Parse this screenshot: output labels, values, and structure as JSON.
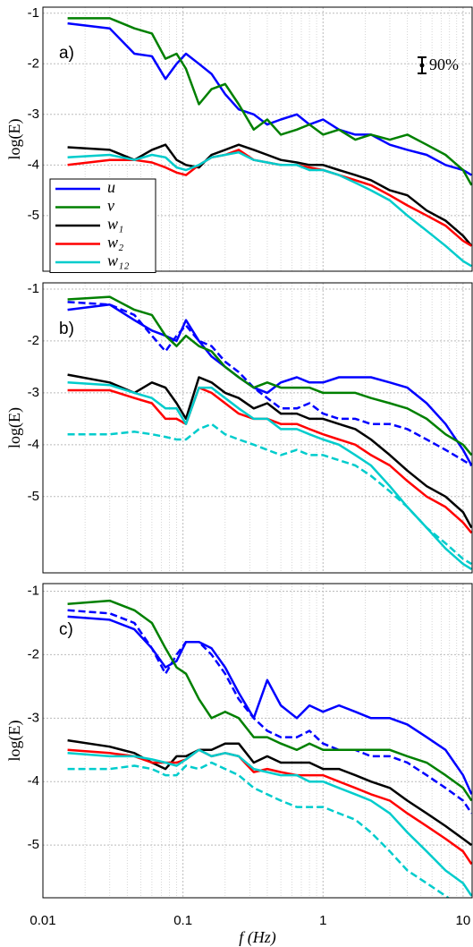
{
  "chart_data": [
    {
      "type": "line",
      "annotation": "a)",
      "ylabel": "log(E)",
      "errorbar_label": "90%",
      "legend": "left",
      "grid": true,
      "log_x": true,
      "xlim": [
        0.01,
        11.6
      ],
      "ylim": [
        -6.1,
        -0.88
      ],
      "xticks": [
        0.01,
        0.1,
        1,
        10
      ],
      "yticks": [
        -5,
        -4,
        -3,
        -2,
        -1
      ],
      "xminorticks": [
        0.02,
        0.03,
        0.04,
        0.05,
        0.06,
        0.07,
        0.08,
        0.09,
        0.2,
        0.3,
        0.4,
        0.5,
        0.6,
        0.7,
        0.8,
        0.9,
        2,
        3,
        4,
        5,
        6,
        7,
        8,
        9
      ],
      "x": [
        0.015,
        0.03,
        0.045,
        0.06,
        0.075,
        0.09,
        0.105,
        0.13,
        0.16,
        0.2,
        0.25,
        0.32,
        0.4,
        0.5,
        0.65,
        0.8,
        1,
        1.3,
        1.7,
        2.2,
        3,
        4,
        5.5,
        7.5,
        10,
        11.5
      ],
      "series": [
        {
          "name": "u",
          "color": "#0000ff",
          "values": [
            -1.2,
            -1.3,
            -1.8,
            -1.85,
            -2.3,
            -2.0,
            -1.8,
            -2.0,
            -2.2,
            -2.6,
            -2.9,
            -3.0,
            -3.2,
            -3.1,
            -3.0,
            -3.2,
            -3.1,
            -3.3,
            -3.4,
            -3.4,
            -3.6,
            -3.7,
            -3.8,
            -4.0,
            -4.1,
            -4.2
          ]
        },
        {
          "name": "v",
          "color": "#008000",
          "values": [
            -1.1,
            -1.1,
            -1.3,
            -1.4,
            -1.9,
            -1.8,
            -2.1,
            -2.8,
            -2.5,
            -2.4,
            -2.8,
            -3.3,
            -3.1,
            -3.4,
            -3.3,
            -3.2,
            -3.4,
            -3.3,
            -3.5,
            -3.4,
            -3.5,
            -3.4,
            -3.6,
            -3.8,
            -4.1,
            -4.4
          ]
        },
        {
          "name": "w₁",
          "color": "#000000",
          "values": [
            -3.65,
            -3.7,
            -3.9,
            -3.7,
            -3.6,
            -3.9,
            -4.0,
            -4.05,
            -3.8,
            -3.7,
            -3.6,
            -3.7,
            -3.8,
            -3.9,
            -3.95,
            -4.0,
            -4.0,
            -4.1,
            -4.2,
            -4.3,
            -4.5,
            -4.6,
            -4.9,
            -5.1,
            -5.4,
            -5.6
          ]
        },
        {
          "name": "w₂",
          "color": "#ff0000",
          "values": [
            -4.0,
            -3.9,
            -3.9,
            -3.95,
            -4.05,
            -4.15,
            -4.2,
            -4.0,
            -3.85,
            -3.8,
            -3.7,
            -3.9,
            -3.95,
            -4.0,
            -4.0,
            -4.05,
            -4.1,
            -4.2,
            -4.3,
            -4.4,
            -4.6,
            -4.8,
            -5.0,
            -5.2,
            -5.5,
            -5.6
          ]
        },
        {
          "name": "w₁₂",
          "color": "#00cccc",
          "values": [
            -3.85,
            -3.8,
            -3.9,
            -3.8,
            -3.85,
            -4.05,
            -4.1,
            -4.0,
            -3.85,
            -3.8,
            -3.75,
            -3.9,
            -3.95,
            -4.0,
            -4.0,
            -4.1,
            -4.1,
            -4.2,
            -4.35,
            -4.5,
            -4.7,
            -5.0,
            -5.3,
            -5.6,
            -5.9,
            -6.0
          ]
        }
      ]
    },
    {
      "type": "line",
      "annotation": "b)",
      "ylabel": "log(E)",
      "grid": true,
      "log_x": true,
      "xlim": [
        0.01,
        11.6
      ],
      "ylim": [
        -6.47,
        -0.88
      ],
      "xticks": [
        0.01,
        0.1,
        1,
        10
      ],
      "yticks": [
        -5,
        -4,
        -3,
        -2,
        -1
      ],
      "xminorticks": [
        0.02,
        0.03,
        0.04,
        0.05,
        0.06,
        0.07,
        0.08,
        0.09,
        0.2,
        0.3,
        0.4,
        0.5,
        0.6,
        0.7,
        0.8,
        0.9,
        2,
        3,
        4,
        5,
        6,
        7,
        8,
        9
      ],
      "x": [
        0.015,
        0.03,
        0.045,
        0.06,
        0.075,
        0.09,
        0.105,
        0.13,
        0.16,
        0.2,
        0.25,
        0.32,
        0.4,
        0.5,
        0.65,
        0.8,
        1,
        1.3,
        1.7,
        2.2,
        3,
        4,
        5.5,
        7.5,
        10,
        11.5
      ],
      "series": [
        {
          "color": "#0000ff",
          "dash": true,
          "values": [
            -1.25,
            -1.3,
            -1.5,
            -1.9,
            -2.2,
            -1.9,
            -1.7,
            -2.0,
            -2.1,
            -2.4,
            -2.6,
            -2.9,
            -3.1,
            -3.3,
            -3.3,
            -3.2,
            -3.4,
            -3.5,
            -3.5,
            -3.6,
            -3.6,
            -3.7,
            -3.9,
            -4.1,
            -4.3,
            -4.4
          ]
        },
        {
          "color": "#00cccc",
          "dash": true,
          "values": [
            -3.8,
            -3.8,
            -3.75,
            -3.8,
            -3.85,
            -3.9,
            -3.9,
            -3.7,
            -3.6,
            -3.8,
            -3.9,
            -4.0,
            -4.1,
            -4.2,
            -4.1,
            -4.2,
            -4.2,
            -4.3,
            -4.4,
            -4.6,
            -4.9,
            -5.2,
            -5.6,
            -5.9,
            -6.2,
            -6.3
          ]
        },
        {
          "color": "#0000ff",
          "values": [
            -1.4,
            -1.3,
            -1.6,
            -1.8,
            -1.9,
            -2.0,
            -1.6,
            -2.0,
            -2.3,
            -2.5,
            -2.7,
            -2.9,
            -3.0,
            -2.8,
            -2.7,
            -2.8,
            -2.8,
            -2.7,
            -2.7,
            -2.7,
            -2.8,
            -2.9,
            -3.2,
            -3.6,
            -4.1,
            -4.4
          ]
        },
        {
          "color": "#008000",
          "values": [
            -1.2,
            -1.15,
            -1.4,
            -1.5,
            -1.9,
            -2.1,
            -1.9,
            -2.1,
            -2.2,
            -2.5,
            -2.7,
            -2.9,
            -2.8,
            -2.9,
            -2.9,
            -2.9,
            -3.0,
            -3.0,
            -3.0,
            -3.1,
            -3.2,
            -3.3,
            -3.5,
            -3.8,
            -4.0,
            -4.2
          ]
        },
        {
          "color": "#000000",
          "values": [
            -2.65,
            -2.8,
            -3.0,
            -2.8,
            -2.9,
            -3.2,
            -3.5,
            -2.7,
            -2.8,
            -3.0,
            -3.1,
            -3.3,
            -3.2,
            -3.4,
            -3.4,
            -3.5,
            -3.5,
            -3.6,
            -3.7,
            -3.9,
            -4.2,
            -4.5,
            -4.8,
            -5.0,
            -5.3,
            -5.6
          ]
        },
        {
          "color": "#ff0000",
          "values": [
            -2.95,
            -2.95,
            -3.1,
            -3.2,
            -3.5,
            -3.5,
            -3.6,
            -2.9,
            -3.0,
            -3.2,
            -3.4,
            -3.5,
            -3.5,
            -3.6,
            -3.6,
            -3.7,
            -3.8,
            -3.9,
            -4.0,
            -4.2,
            -4.4,
            -4.7,
            -5.0,
            -5.2,
            -5.5,
            -5.7
          ]
        },
        {
          "color": "#00cccc",
          "values": [
            -2.8,
            -2.85,
            -3.0,
            -3.1,
            -3.3,
            -3.3,
            -3.6,
            -2.9,
            -2.9,
            -3.1,
            -3.3,
            -3.5,
            -3.5,
            -3.7,
            -3.7,
            -3.8,
            -3.9,
            -4.0,
            -4.2,
            -4.4,
            -4.8,
            -5.2,
            -5.6,
            -6.0,
            -6.3,
            -6.4
          ]
        }
      ]
    },
    {
      "type": "line",
      "annotation": "c)",
      "ylabel": "log(E)",
      "xlabel": "f (Hz)",
      "show_xtick_labels": true,
      "grid": true,
      "log_x": true,
      "xlim": [
        0.01,
        11.6
      ],
      "ylim": [
        -5.83,
        -0.88
      ],
      "xticks": [
        0.01,
        0.1,
        1,
        10
      ],
      "yticks": [
        -5,
        -4,
        -3,
        -2,
        -1
      ],
      "xminorticks": [
        0.02,
        0.03,
        0.04,
        0.05,
        0.06,
        0.07,
        0.08,
        0.09,
        0.2,
        0.3,
        0.4,
        0.5,
        0.6,
        0.7,
        0.8,
        0.9,
        2,
        3,
        4,
        5,
        6,
        7,
        8,
        9
      ],
      "x": [
        0.015,
        0.03,
        0.045,
        0.06,
        0.075,
        0.09,
        0.105,
        0.13,
        0.16,
        0.2,
        0.25,
        0.32,
        0.4,
        0.5,
        0.65,
        0.8,
        1,
        1.3,
        1.7,
        2.2,
        3,
        4,
        5.5,
        7.5,
        10,
        11.5
      ],
      "series": [
        {
          "color": "#0000ff",
          "dash": true,
          "values": [
            -1.3,
            -1.35,
            -1.5,
            -1.9,
            -2.3,
            -2.0,
            -1.8,
            -1.8,
            -2.0,
            -2.3,
            -2.7,
            -3.0,
            -3.2,
            -3.3,
            -3.3,
            -3.2,
            -3.4,
            -3.5,
            -3.5,
            -3.6,
            -3.6,
            -3.7,
            -3.9,
            -4.1,
            -4.3,
            -4.5
          ]
        },
        {
          "color": "#00cccc",
          "dash": true,
          "values": [
            -3.8,
            -3.8,
            -3.75,
            -3.8,
            -3.9,
            -3.9,
            -3.75,
            -3.8,
            -3.7,
            -3.8,
            -3.9,
            -4.1,
            -4.2,
            -4.3,
            -4.4,
            -4.4,
            -4.4,
            -4.5,
            -4.6,
            -4.8,
            -5.1,
            -5.4,
            -5.6,
            -5.8,
            -6.0,
            -6.1
          ]
        },
        {
          "color": "#0000ff",
          "values": [
            -1.4,
            -1.45,
            -1.6,
            -1.9,
            -2.2,
            -2.1,
            -1.8,
            -1.8,
            -1.9,
            -2.2,
            -2.6,
            -3.0,
            -2.4,
            -2.8,
            -3.0,
            -2.8,
            -2.9,
            -2.8,
            -2.9,
            -3.0,
            -3.0,
            -3.1,
            -3.3,
            -3.5,
            -3.9,
            -4.2
          ]
        },
        {
          "color": "#008000",
          "values": [
            -1.2,
            -1.15,
            -1.3,
            -1.5,
            -1.9,
            -2.2,
            -2.3,
            -2.7,
            -3.0,
            -2.9,
            -3.0,
            -3.3,
            -3.3,
            -3.4,
            -3.5,
            -3.4,
            -3.5,
            -3.5,
            -3.5,
            -3.5,
            -3.5,
            -3.6,
            -3.7,
            -3.9,
            -4.1,
            -4.3
          ]
        },
        {
          "color": "#000000",
          "values": [
            -3.35,
            -3.45,
            -3.55,
            -3.7,
            -3.8,
            -3.6,
            -3.6,
            -3.5,
            -3.5,
            -3.4,
            -3.4,
            -3.7,
            -3.6,
            -3.7,
            -3.7,
            -3.7,
            -3.8,
            -3.8,
            -3.9,
            -4.0,
            -4.1,
            -4.3,
            -4.5,
            -4.7,
            -4.9,
            -5.0
          ]
        },
        {
          "color": "#ff0000",
          "values": [
            -3.5,
            -3.55,
            -3.6,
            -3.7,
            -3.7,
            -3.7,
            -3.65,
            -3.5,
            -3.6,
            -3.55,
            -3.6,
            -3.85,
            -3.8,
            -3.85,
            -3.9,
            -3.9,
            -3.9,
            -4.0,
            -4.1,
            -4.2,
            -4.3,
            -4.5,
            -4.7,
            -4.9,
            -5.1,
            -5.3
          ]
        },
        {
          "color": "#00cccc",
          "values": [
            -3.55,
            -3.6,
            -3.6,
            -3.65,
            -3.7,
            -3.75,
            -3.65,
            -3.5,
            -3.6,
            -3.55,
            -3.6,
            -3.8,
            -3.85,
            -3.9,
            -3.9,
            -4.0,
            -4.0,
            -4.1,
            -4.2,
            -4.3,
            -4.5,
            -4.8,
            -5.1,
            -5.4,
            -5.6,
            -5.8
          ]
        }
      ]
    }
  ]
}
